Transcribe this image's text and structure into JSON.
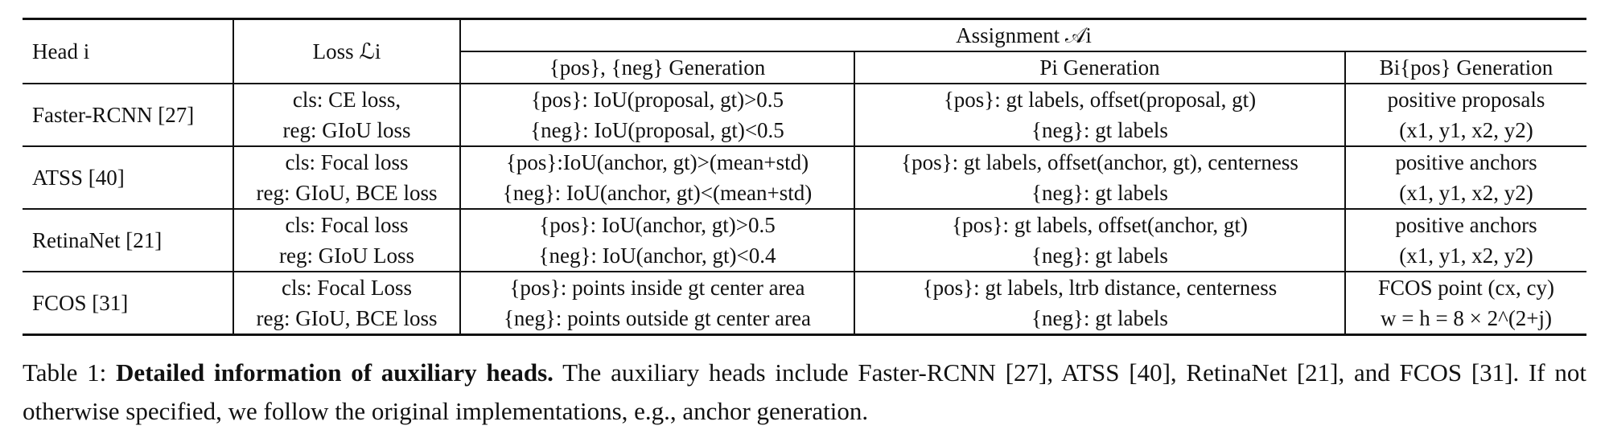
{
  "table": {
    "header": {
      "head": "Head i",
      "loss": "Loss ℒi",
      "assignment": "Assignment 𝒜i",
      "gen_posneg": "{pos}, {neg} Generation",
      "gen_p": "Pi Generation",
      "gen_b": "Bi{pos} Generation"
    },
    "rows": [
      {
        "head": "Faster-RCNN [27]",
        "loss": [
          "cls: CE loss,",
          "reg: GIoU loss"
        ],
        "posneg": [
          "{pos}: IoU(proposal, gt)>0.5",
          "{neg}: IoU(proposal, gt)<0.5"
        ],
        "p": [
          "{pos}: gt labels, offset(proposal, gt)",
          "{neg}: gt labels"
        ],
        "b": [
          "positive proposals",
          "(x1, y1, x2, y2)"
        ]
      },
      {
        "head": "ATSS [40]",
        "loss": [
          "cls: Focal loss",
          "reg: GIoU, BCE loss"
        ],
        "posneg": [
          "{pos}:IoU(anchor, gt)>(mean+std)",
          "{neg}: IoU(anchor, gt)<(mean+std)"
        ],
        "p": [
          "{pos}: gt labels, offset(anchor, gt), centerness",
          "{neg}: gt labels"
        ],
        "b": [
          "positive anchors",
          "(x1, y1, x2, y2)"
        ]
      },
      {
        "head": "RetinaNet [21]",
        "loss": [
          "cls: Focal loss",
          "reg: GIoU Loss"
        ],
        "posneg": [
          "{pos}: IoU(anchor, gt)>0.5",
          "{neg}: IoU(anchor, gt)<0.4"
        ],
        "p": [
          "{pos}: gt labels, offset(anchor, gt)",
          "{neg}: gt labels"
        ],
        "b": [
          "positive anchors",
          "(x1, y1, x2, y2)"
        ]
      },
      {
        "head": "FCOS [31]",
        "loss": [
          "cls: Focal Loss",
          "reg: GIoU, BCE loss"
        ],
        "posneg": [
          "{pos}: points inside gt center area",
          "{neg}: points outside gt center area"
        ],
        "p": [
          "{pos}: gt labels, ltrb distance, centerness",
          "{neg}: gt labels"
        ],
        "b": [
          "FCOS point (cx, cy)",
          "w = h = 8 × 2^(2+j)"
        ]
      }
    ]
  },
  "caption": {
    "label": "Table 1:",
    "bold": "Detailed information of auxiliary heads.",
    "text": "The auxiliary heads include Faster-RCNN [27], ATSS [40], RetinaNet [21], and FCOS [31]. If not otherwise specified, we follow the original implementations, e.g., anchor generation."
  }
}
